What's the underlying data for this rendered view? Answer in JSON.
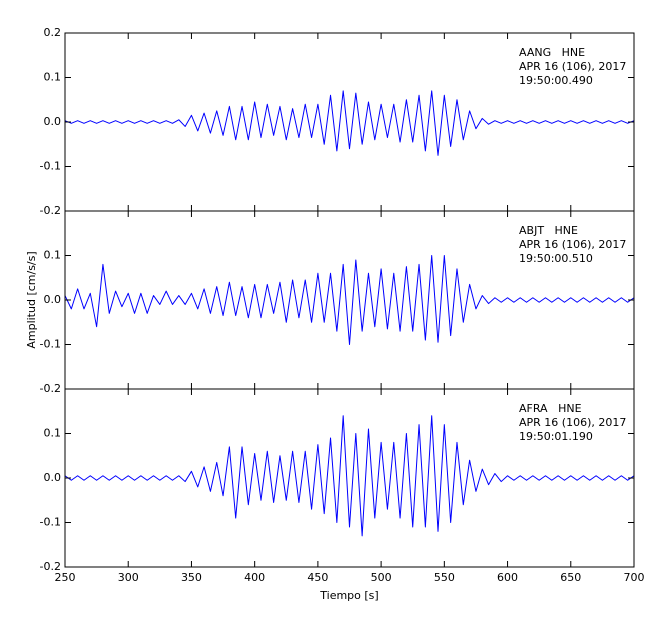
{
  "chart_data": [
    {
      "type": "line",
      "color": "#0000ff",
      "ylim": [
        -0.2,
        0.2
      ],
      "yticks": [
        -0.2,
        -0.1,
        {
          "value": 0,
          "label": "0.0"
        },
        0.1,
        0.2
      ],
      "annotations": [
        "AANG   HNE",
        "APR 16 (106), 2017",
        "19:50:00.490"
      ],
      "x": [
        250,
        255,
        260,
        265,
        270,
        275,
        280,
        285,
        290,
        295,
        300,
        305,
        310,
        315,
        320,
        325,
        330,
        335,
        340,
        345,
        350,
        355,
        360,
        365,
        370,
        375,
        380,
        385,
        390,
        395,
        400,
        405,
        410,
        415,
        420,
        425,
        430,
        435,
        440,
        445,
        450,
        455,
        460,
        465,
        470,
        475,
        480,
        485,
        490,
        495,
        500,
        505,
        510,
        515,
        520,
        525,
        530,
        535,
        540,
        545,
        550,
        555,
        560,
        565,
        570,
        575,
        580,
        585,
        590,
        595,
        600,
        605,
        610,
        615,
        620,
        625,
        630,
        635,
        640,
        645,
        650,
        655,
        660,
        665,
        670,
        675,
        680,
        685,
        690,
        695,
        700
      ],
      "values": [
        0.003,
        -0.003,
        0.003,
        -0.003,
        0.003,
        -0.003,
        0.003,
        -0.003,
        0.003,
        -0.003,
        0.003,
        -0.003,
        0.003,
        -0.003,
        0.003,
        -0.003,
        0.003,
        -0.003,
        0.005,
        -0.01,
        0.015,
        -0.02,
        0.02,
        -0.025,
        0.025,
        -0.03,
        0.035,
        -0.04,
        0.035,
        -0.04,
        0.045,
        -0.035,
        0.04,
        -0.03,
        0.035,
        -0.04,
        0.03,
        -0.035,
        0.04,
        -0.035,
        0.04,
        -0.05,
        0.06,
        -0.065,
        0.07,
        -0.06,
        0.065,
        -0.05,
        0.045,
        -0.04,
        0.04,
        -0.035,
        0.04,
        -0.045,
        0.05,
        -0.045,
        0.06,
        -0.065,
        0.07,
        -0.075,
        0.06,
        -0.055,
        0.05,
        -0.04,
        0.025,
        -0.015,
        0.008,
        -0.005,
        0.003,
        -0.003,
        0.003,
        -0.003,
        0.003,
        -0.003,
        0.003,
        -0.003,
        0.003,
        -0.003,
        0.003,
        -0.003,
        0.003,
        -0.003,
        0.003,
        -0.003,
        0.003,
        -0.003,
        0.003,
        -0.003,
        0.003,
        -0.003,
        0.003
      ]
    },
    {
      "type": "line",
      "color": "#0000ff",
      "ylim": [
        -0.2,
        0.2
      ],
      "yticks": [
        -0.2,
        -0.1,
        {
          "value": 0,
          "label": "0.0"
        },
        0.1
      ],
      "y_label": "Amplitud [cm/s/s]",
      "annotations": [
        "ABJT   HNE",
        "APR 16 (106), 2017",
        "19:50:00.510"
      ],
      "x": [
        250,
        255,
        260,
        265,
        270,
        275,
        280,
        285,
        290,
        295,
        300,
        305,
        310,
        315,
        320,
        325,
        330,
        335,
        340,
        345,
        350,
        355,
        360,
        365,
        370,
        375,
        380,
        385,
        390,
        395,
        400,
        405,
        410,
        415,
        420,
        425,
        430,
        435,
        440,
        445,
        450,
        455,
        460,
        465,
        470,
        475,
        480,
        485,
        490,
        495,
        500,
        505,
        510,
        515,
        520,
        525,
        530,
        535,
        540,
        545,
        550,
        555,
        560,
        565,
        570,
        575,
        580,
        585,
        590,
        595,
        600,
        605,
        610,
        615,
        620,
        625,
        630,
        635,
        640,
        645,
        650,
        655,
        660,
        665,
        670,
        675,
        680,
        685,
        690,
        695,
        700
      ],
      "values": [
        0.01,
        -0.02,
        0.025,
        -0.02,
        0.015,
        -0.06,
        0.08,
        -0.03,
        0.02,
        -0.015,
        0.015,
        -0.03,
        0.015,
        -0.03,
        0.01,
        -0.01,
        0.02,
        -0.01,
        0.01,
        -0.01,
        0.015,
        -0.02,
        0.025,
        -0.03,
        0.03,
        -0.035,
        0.04,
        -0.035,
        0.03,
        -0.04,
        0.035,
        -0.04,
        0.035,
        -0.03,
        0.04,
        -0.05,
        0.045,
        -0.04,
        0.045,
        -0.05,
        0.06,
        -0.05,
        0.06,
        -0.07,
        0.08,
        -0.1,
        0.09,
        -0.07,
        0.06,
        -0.06,
        0.07,
        -0.065,
        0.06,
        -0.07,
        0.075,
        -0.07,
        0.08,
        -0.09,
        0.1,
        -0.095,
        0.1,
        -0.08,
        0.07,
        -0.05,
        0.035,
        -0.02,
        0.01,
        -0.008,
        0.005,
        -0.005,
        0.005,
        -0.005,
        0.005,
        -0.005,
        0.005,
        -0.005,
        0.005,
        -0.005,
        0.005,
        -0.005,
        0.005,
        -0.005,
        0.005,
        -0.005,
        0.005,
        -0.005,
        0.005,
        -0.005,
        0.005,
        -0.005,
        0.005
      ]
    },
    {
      "type": "line",
      "color": "#0000ff",
      "ylim": [
        -0.2,
        0.2
      ],
      "yticks": [
        -0.2,
        -0.1,
        {
          "value": 0,
          "label": "0.0"
        },
        0.1
      ],
      "xlim": [
        250,
        700
      ],
      "xticks": [
        250,
        300,
        350,
        400,
        450,
        500,
        550,
        600,
        650,
        700
      ],
      "x_label": "Tiempo [s]",
      "annotations": [
        "AFRA   HNE",
        "APR 16 (106), 2017",
        "19:50:01.190"
      ],
      "x": [
        250,
        255,
        260,
        265,
        270,
        275,
        280,
        285,
        290,
        295,
        300,
        305,
        310,
        315,
        320,
        325,
        330,
        335,
        340,
        345,
        350,
        355,
        360,
        365,
        370,
        375,
        380,
        385,
        390,
        395,
        400,
        405,
        410,
        415,
        420,
        425,
        430,
        435,
        440,
        445,
        450,
        455,
        460,
        465,
        470,
        475,
        480,
        485,
        490,
        495,
        500,
        505,
        510,
        515,
        520,
        525,
        530,
        535,
        540,
        545,
        550,
        555,
        560,
        565,
        570,
        575,
        580,
        585,
        590,
        595,
        600,
        605,
        610,
        615,
        620,
        625,
        630,
        635,
        640,
        645,
        650,
        655,
        660,
        665,
        670,
        675,
        680,
        685,
        690,
        695,
        700
      ],
      "values": [
        0.005,
        -0.005,
        0.005,
        -0.005,
        0.005,
        -0.005,
        0.005,
        -0.005,
        0.005,
        -0.005,
        0.005,
        -0.005,
        0.005,
        -0.005,
        0.005,
        -0.005,
        0.005,
        -0.005,
        0.005,
        -0.008,
        0.015,
        -0.02,
        0.025,
        -0.03,
        0.035,
        -0.04,
        0.07,
        -0.09,
        0.07,
        -0.06,
        0.055,
        -0.05,
        0.06,
        -0.055,
        0.05,
        -0.05,
        0.06,
        -0.055,
        0.06,
        -0.07,
        0.075,
        -0.08,
        0.09,
        -0.1,
        0.14,
        -0.11,
        0.1,
        -0.13,
        0.11,
        -0.09,
        0.08,
        -0.07,
        0.08,
        -0.09,
        0.1,
        -0.11,
        0.12,
        -0.11,
        0.14,
        -0.12,
        0.12,
        -0.1,
        0.08,
        -0.06,
        0.04,
        -0.03,
        0.02,
        -0.015,
        0.01,
        -0.008,
        0.005,
        -0.005,
        0.005,
        -0.005,
        0.005,
        -0.005,
        0.005,
        -0.005,
        0.005,
        -0.005,
        0.005,
        -0.005,
        0.005,
        -0.005,
        0.005,
        -0.005,
        0.005,
        -0.005,
        0.005,
        -0.005,
        0.005
      ]
    }
  ]
}
